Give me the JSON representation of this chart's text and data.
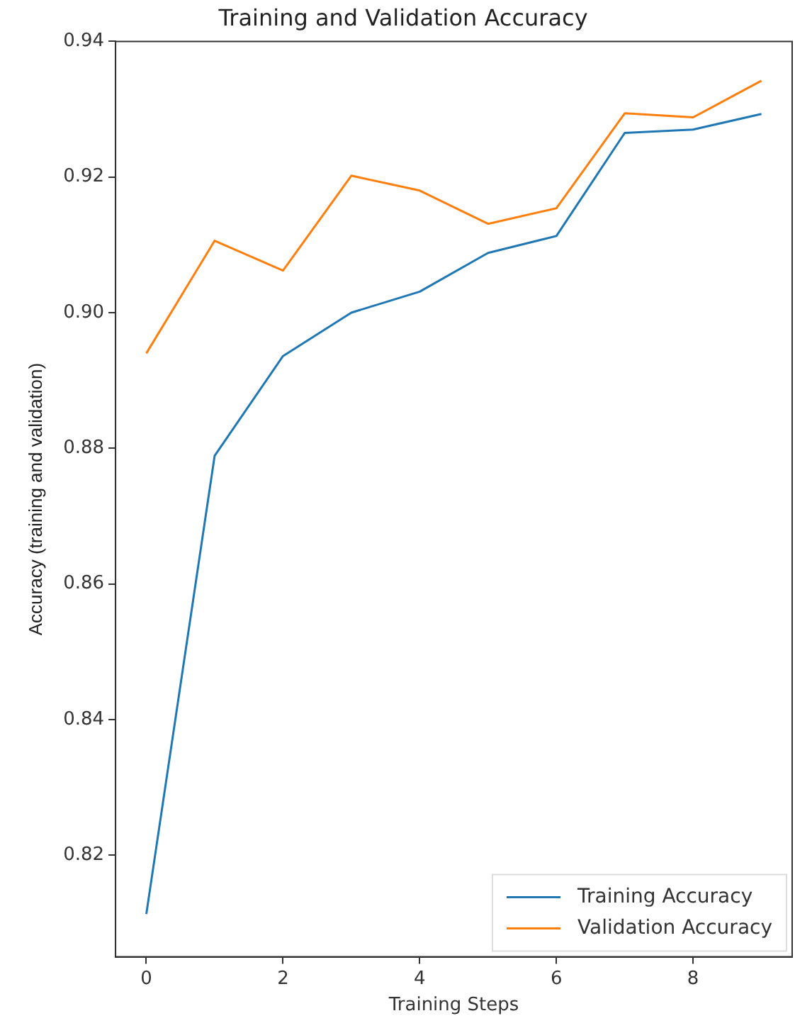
{
  "chart_data": {
    "type": "line",
    "title": "Training and Validation Accuracy",
    "xlabel": "Training Steps",
    "ylabel": "Accuracy (training and validation)",
    "x": [
      0,
      1,
      2,
      3,
      4,
      5,
      6,
      7,
      8,
      9
    ],
    "series": [
      {
        "name": "Training Accuracy",
        "color": "#1f77b4",
        "values": [
          0.8113,
          0.8789,
          0.8936,
          0.9,
          0.9031,
          0.9088,
          0.9113,
          0.9265,
          0.927,
          0.9293
        ]
      },
      {
        "name": "Validation Accuracy",
        "color": "#ff7f0e",
        "values": [
          0.894,
          0.9106,
          0.9062,
          0.9202,
          0.918,
          0.9131,
          0.9154,
          0.9294,
          0.9288,
          0.9342
        ]
      }
    ],
    "xlim": [
      -0.45,
      9.45
    ],
    "xticks": [
      0,
      2,
      4,
      6,
      8
    ],
    "ylim": [
      0.805,
      0.94
    ],
    "yticks": [
      {
        "value": 0.82,
        "label": "0.82"
      },
      {
        "value": 0.84,
        "label": "0.84"
      },
      {
        "value": 0.86,
        "label": "0.86"
      },
      {
        "value": 0.88,
        "label": "0.88"
      },
      {
        "value": 0.9,
        "label": "0.90"
      },
      {
        "value": 0.92,
        "label": "0.92"
      },
      {
        "value": 0.94,
        "label": "0.94"
      }
    ],
    "grid": false,
    "legend": "bottom right",
    "marker": "none",
    "line_style": "solid"
  }
}
